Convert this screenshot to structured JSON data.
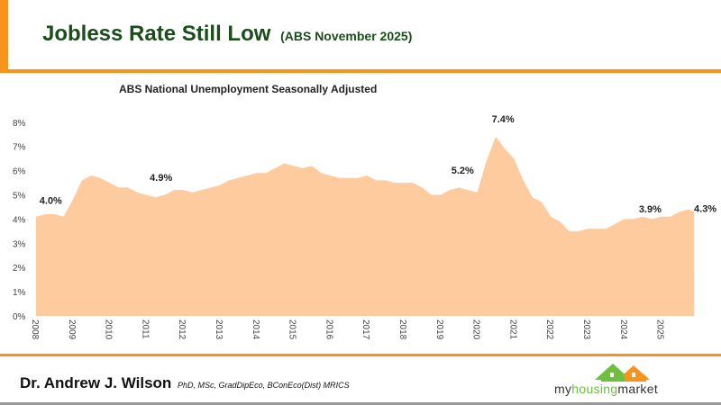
{
  "header": {
    "title": "Jobless Rate Still Low",
    "subtitle": "(ABS November 2025)"
  },
  "footer": {
    "author": "Dr. Andrew J. Wilson",
    "credentials": "PhD, MSc, GradDipEco, BConEco(Dist) MRICS",
    "logo_text": [
      "my",
      "housing",
      "market"
    ]
  },
  "colors": {
    "accent": "#f7941d",
    "area_fill": "#fdcb9e",
    "title": "#1b4d1b"
  },
  "chart_data": {
    "type": "area",
    "title": "ABS National Unemployment Seasonally Adjusted",
    "xlabel": "",
    "ylabel": "",
    "xlim": [
      2008,
      2025.9
    ],
    "ylim": [
      0,
      8
    ],
    "grid": false,
    "yticks": [
      "0%",
      "1%",
      "2%",
      "3%",
      "4%",
      "5%",
      "6%",
      "7%",
      "8%"
    ],
    "xticks": [
      "2008",
      "2009",
      "2010",
      "2011",
      "2012",
      "2013",
      "2014",
      "2015",
      "2016",
      "2017",
      "2018",
      "2019",
      "2020",
      "2021",
      "2022",
      "2023",
      "2024",
      "2025"
    ],
    "x": [
      2008.0,
      2008.25,
      2008.5,
      2008.75,
      2009.0,
      2009.25,
      2009.5,
      2009.75,
      2010.0,
      2010.25,
      2010.5,
      2010.75,
      2011.0,
      2011.25,
      2011.5,
      2011.75,
      2012.0,
      2012.25,
      2012.5,
      2012.75,
      2013.0,
      2013.25,
      2013.5,
      2013.75,
      2014.0,
      2014.25,
      2014.5,
      2014.75,
      2015.0,
      2015.25,
      2015.5,
      2015.75,
      2016.0,
      2016.25,
      2016.5,
      2016.75,
      2017.0,
      2017.25,
      2017.5,
      2017.75,
      2018.0,
      2018.25,
      2018.5,
      2018.75,
      2019.0,
      2019.25,
      2019.5,
      2019.75,
      2020.0,
      2020.25,
      2020.5,
      2020.75,
      2021.0,
      2021.25,
      2021.5,
      2021.75,
      2022.0,
      2022.25,
      2022.5,
      2022.75,
      2023.0,
      2023.25,
      2023.5,
      2023.75,
      2024.0,
      2024.25,
      2024.5,
      2024.75,
      2025.0,
      2025.25,
      2025.5,
      2025.75,
      2025.9
    ],
    "values": [
      4.1,
      4.2,
      4.2,
      4.1,
      4.8,
      5.6,
      5.8,
      5.7,
      5.5,
      5.3,
      5.3,
      5.1,
      5.0,
      4.9,
      5.0,
      5.2,
      5.2,
      5.1,
      5.2,
      5.3,
      5.4,
      5.6,
      5.7,
      5.8,
      5.9,
      5.9,
      6.1,
      6.3,
      6.2,
      6.1,
      6.2,
      5.9,
      5.8,
      5.7,
      5.7,
      5.7,
      5.8,
      5.6,
      5.6,
      5.5,
      5.5,
      5.5,
      5.3,
      5.0,
      5.0,
      5.2,
      5.3,
      5.2,
      5.1,
      6.4,
      7.4,
      6.9,
      6.5,
      5.6,
      4.9,
      4.7,
      4.1,
      3.9,
      3.5,
      3.5,
      3.6,
      3.6,
      3.6,
      3.8,
      4.0,
      4.0,
      4.1,
      4.0,
      4.1,
      4.1,
      4.3,
      4.4,
      4.3
    ],
    "annotations": [
      {
        "x": 2008.4,
        "y": 4.0,
        "text": "4.0%"
      },
      {
        "x": 2011.4,
        "y": 4.9,
        "text": "4.9%"
      },
      {
        "x": 2019.6,
        "y": 5.2,
        "text": "5.2%"
      },
      {
        "x": 2020.7,
        "y": 7.4,
        "text": "7.4%"
      },
      {
        "x": 2024.7,
        "y": 3.9,
        "text": "3.9%"
      },
      {
        "x": 2026.2,
        "y": 4.3,
        "text": "4.3%"
      }
    ]
  }
}
